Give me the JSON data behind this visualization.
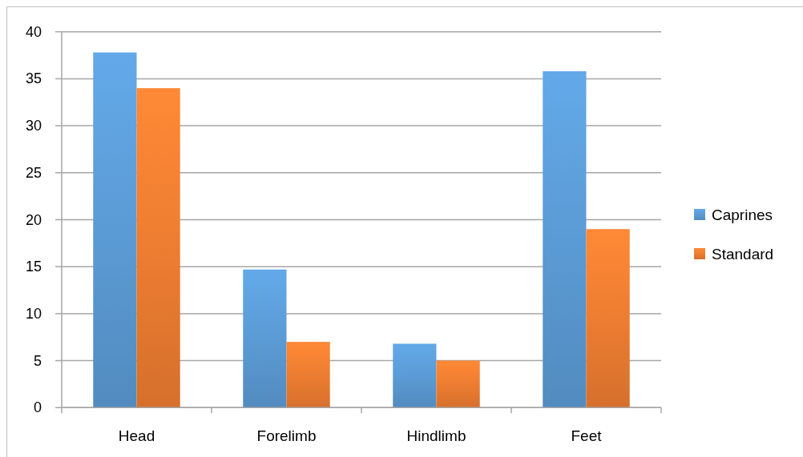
{
  "chart_data": {
    "type": "bar",
    "categories": [
      "Head",
      "Forelimb",
      "Hindlimb",
      "Feet"
    ],
    "series": [
      {
        "name": "Caprines",
        "color": "#5b9bd5",
        "values": [
          37.8,
          14.7,
          6.8,
          35.8
        ]
      },
      {
        "name": "Standard",
        "color": "#ed7d31",
        "values": [
          34.0,
          7.0,
          5.0,
          19.0
        ]
      }
    ],
    "ylim": [
      0,
      40
    ],
    "yticks": [
      0,
      5,
      10,
      15,
      20,
      25,
      30,
      35,
      40
    ],
    "grid": "y",
    "legend": "right"
  }
}
